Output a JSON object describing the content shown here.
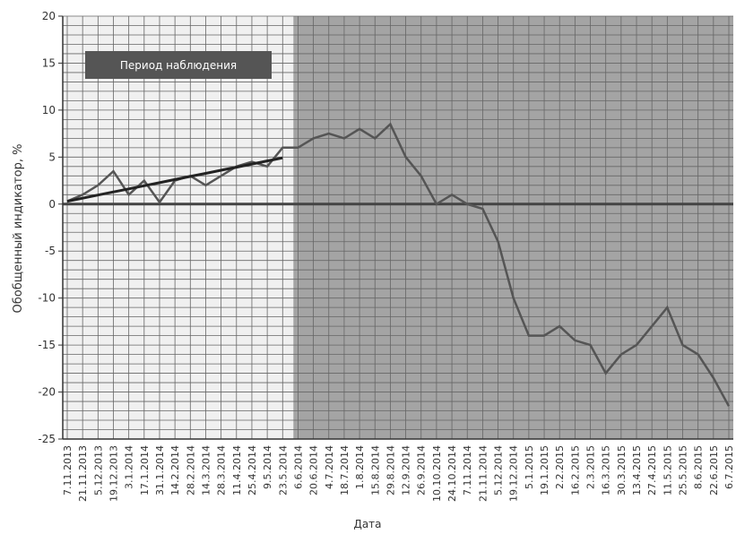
{
  "chart_data": {
    "type": "line",
    "x_label": "Дата",
    "y_label": "Обобщенный индикатор, %",
    "categories": [
      "7.11.2013",
      "21.11.2013",
      "5.12.2013",
      "19.12.2013",
      "3.1.2014",
      "17.1.2014",
      "31.1.2014",
      "14.2.2014",
      "28.2.2014",
      "14.3.2014",
      "28.3.2014",
      "11.4.2014",
      "25.4.2014",
      "9.5.2014",
      "23.5.2014",
      "6.6.2014",
      "20.6.2014",
      "4.7.2014",
      "18.7.2014",
      "1.8.2014",
      "15.8.2014",
      "29.8.2014",
      "12.9.2014",
      "26.9.2014",
      "10.10.2014",
      "24.10.2014",
      "7.11.2014",
      "21.11.2014",
      "5.12.2014",
      "19.12.2014",
      "5.1.2015",
      "19.1.2015",
      "2.2.2015",
      "16.2.2015",
      "2.3.2015",
      "16.3.2015",
      "30.3.2015",
      "13.4.2015",
      "27.4.2015",
      "11.5.2015",
      "25.5.2015",
      "8.6.2015",
      "22.6.2015",
      "6.7.2015"
    ],
    "series": [
      {
        "color": "#555555",
        "values": [
          0.3,
          1,
          2,
          3.5,
          1,
          2.5,
          0.2,
          2.5,
          3,
          2,
          3,
          4,
          4.5,
          4,
          6,
          6,
          7,
          7.5,
          7,
          8,
          7,
          8.5,
          5,
          3,
          0,
          1,
          0,
          -0.5,
          -4,
          -10,
          -14,
          -14,
          -13,
          -14.5,
          -15,
          -18,
          -16,
          -15,
          -13,
          -11,
          -15,
          -16,
          -18.5,
          -21.5
        ]
      },
      {
        "color": "#222222",
        "values": [
          0.3,
          0.63,
          0.96,
          1.29,
          1.62,
          1.95,
          2.28,
          2.61,
          2.94,
          3.27,
          3.6,
          3.93,
          4.26,
          4.59,
          4.92,
          null,
          null,
          null,
          null,
          null,
          null,
          null,
          null,
          null,
          null,
          null,
          null,
          null,
          null,
          null,
          null,
          null,
          null,
          null,
          null,
          null,
          null,
          null,
          null,
          null,
          null,
          null,
          null,
          null
        ]
      }
    ],
    "observation_period": {
      "label": "Период наблюдения",
      "end_index": 14
    },
    "ylim": [
      -25,
      20
    ],
    "yticks": [
      -25,
      -20,
      -15,
      -10,
      -5,
      0,
      5,
      10,
      15,
      20
    ],
    "minor_ystep": 1,
    "grid": true
  }
}
